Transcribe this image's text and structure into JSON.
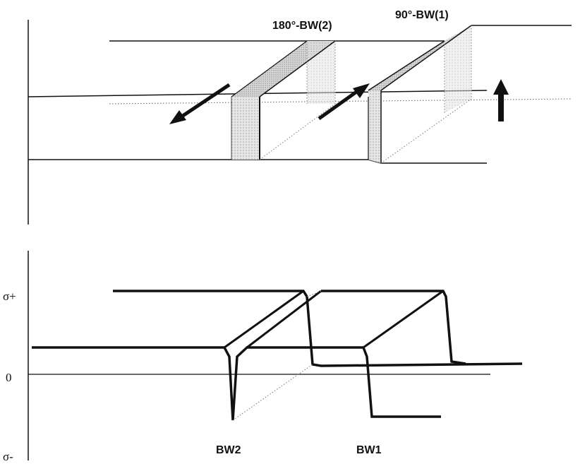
{
  "top_diagram": {
    "wall_label_2": "180°-BW(2)",
    "wall_label_1": "90°-BW(1)"
  },
  "bottom_diagram": {
    "y_label_plus": "σ+",
    "y_label_zero": "0",
    "y_label_minus": "σ-",
    "wall_label_bw2": "BW2",
    "wall_label_bw1": "BW1"
  },
  "colors": {
    "line": "#111111",
    "shade": "#d9d9d9",
    "shade_dark": "#c8c8c8"
  }
}
